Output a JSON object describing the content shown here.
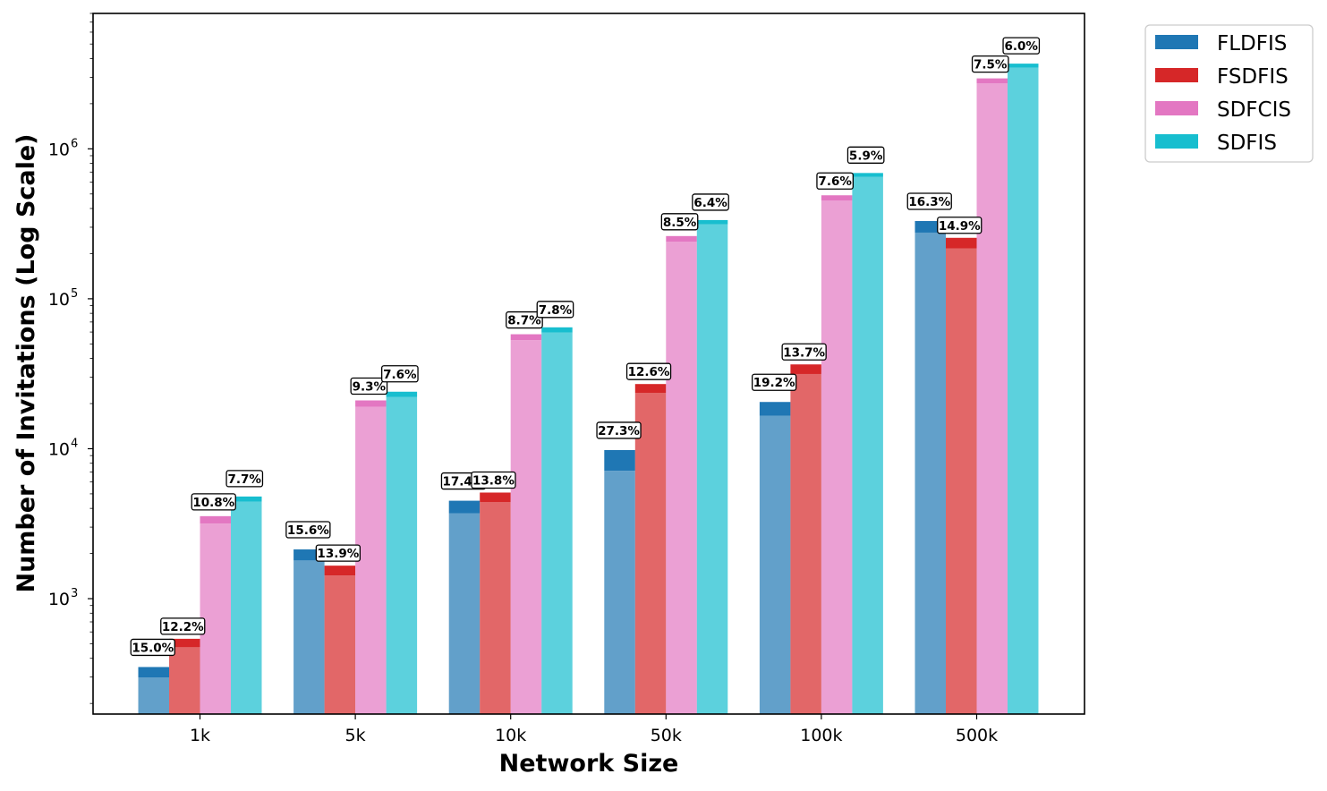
{
  "chart_data": {
    "type": "bar",
    "stacked_segments": true,
    "xlabel": "Network Size",
    "ylabel": "Number of Invitations (Log Scale)",
    "yscale": "log",
    "ylim": [
      170,
      8000000
    ],
    "grid": false,
    "legend_position": "outside-top-right",
    "categories": [
      "1k",
      "5k",
      "10k",
      "50k",
      "100k",
      "500k"
    ],
    "yticks": [
      {
        "value": 1000,
        "base": "10",
        "exp": "3"
      },
      {
        "value": 10000,
        "base": "10",
        "exp": "4"
      },
      {
        "value": 100000,
        "base": "10",
        "exp": "5"
      },
      {
        "value": 1000000,
        "base": "10",
        "exp": "6"
      }
    ],
    "series": [
      {
        "name": "FLDFIS",
        "color": "#1f77b4",
        "values": [
          350,
          2130,
          4500,
          9800,
          20500,
          330000
        ],
        "percent_labels": [
          "15.0%",
          "15.6%",
          "17.4%",
          "27.3%",
          "19.2%",
          "16.3%"
        ]
      },
      {
        "name": "FSDFIS",
        "color": "#d62728",
        "values": [
          540,
          1660,
          5100,
          27000,
          36500,
          255000
        ],
        "percent_labels": [
          "12.2%",
          "13.9%",
          "13.8%",
          "12.6%",
          "13.7%",
          "14.9%"
        ]
      },
      {
        "name": "SDFCIS",
        "color": "#e377c2",
        "values": [
          3550,
          21000,
          58000,
          262000,
          490000,
          2950000
        ],
        "percent_labels": [
          "10.8%",
          "9.3%",
          "8.7%",
          "8.5%",
          "7.6%",
          "7.5%"
        ]
      },
      {
        "name": "SDFIS",
        "color": "#17becf",
        "values": [
          4800,
          24000,
          64500,
          335000,
          690000,
          3700000
        ],
        "percent_labels": [
          "7.7%",
          "7.6%",
          "7.8%",
          "6.4%",
          "5.9%",
          "6.0%"
        ]
      }
    ]
  }
}
